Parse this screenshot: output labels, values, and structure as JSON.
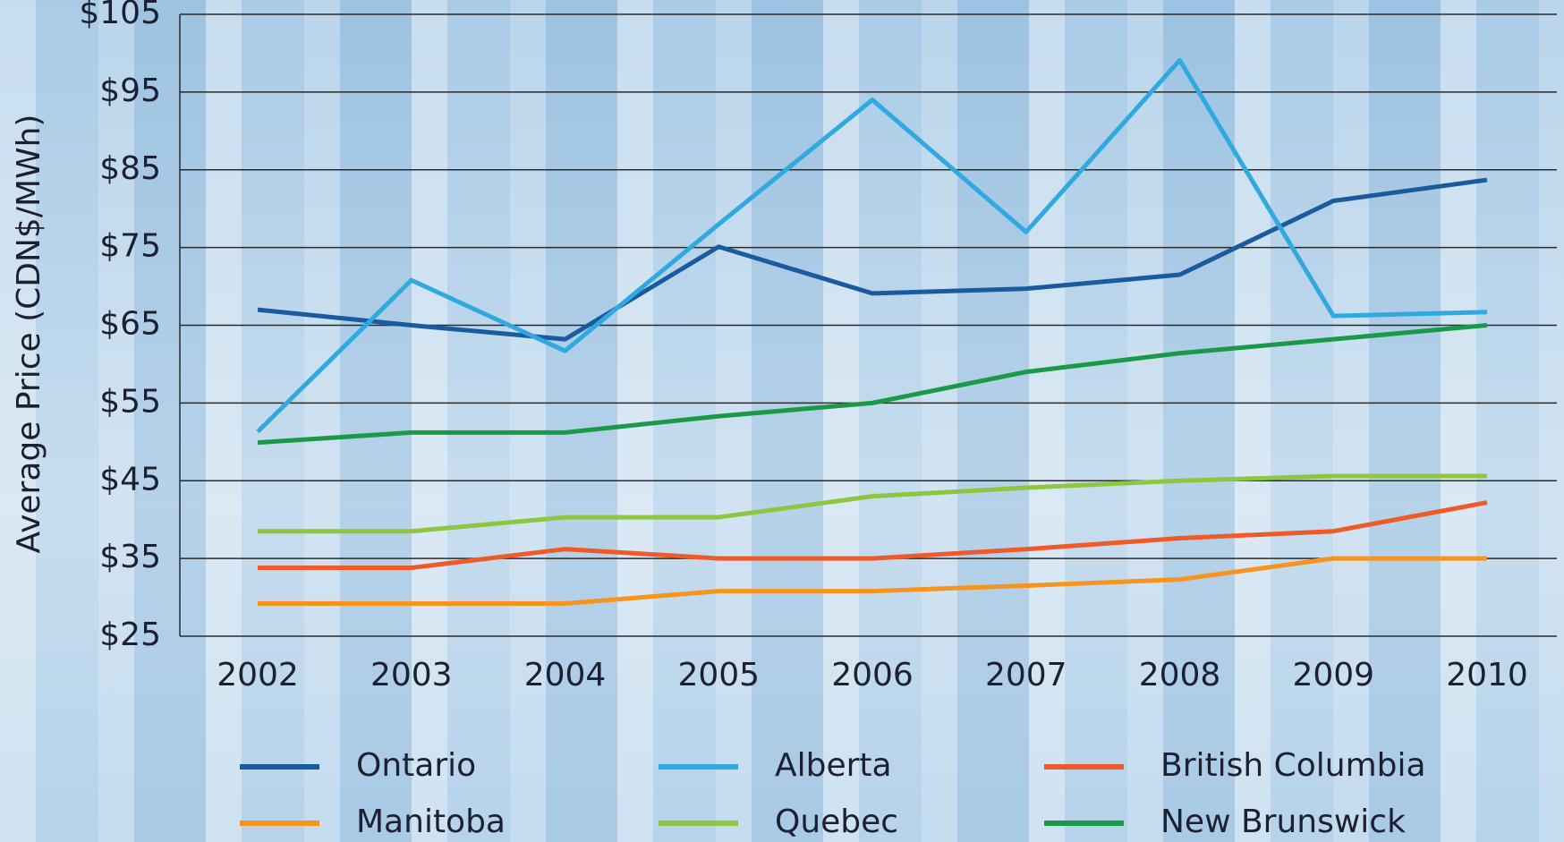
{
  "chart_data": {
    "type": "line",
    "y_label": "Average Price (CDN$/MWh)",
    "categories": [
      "2002",
      "2003",
      "2004",
      "2005",
      "2006",
      "2007",
      "2008",
      "2009",
      "2010"
    ],
    "series": [
      {
        "name": "Ontario",
        "color": "#1a5a9e",
        "values": [
          67,
          65,
          63.2,
          75.1,
          69.1,
          69.7,
          71.5,
          81,
          83.7
        ]
      },
      {
        "name": "Alberta",
        "color": "#2fa9e0",
        "values": [
          51.3,
          70.8,
          61.7,
          78,
          94,
          77,
          99.1,
          66.2,
          66.7
        ]
      },
      {
        "name": "British Columbia",
        "color": "#f05a28",
        "values": [
          33.8,
          33.8,
          36.2,
          35,
          35,
          36.2,
          37.6,
          38.5,
          42.2
        ]
      },
      {
        "name": "Manitoba",
        "color": "#f7941d",
        "values": [
          29.2,
          29.2,
          29.2,
          30.8,
          30.8,
          31.5,
          32.3,
          35,
          35
        ]
      },
      {
        "name": "Quebec",
        "color": "#8dc63f",
        "values": [
          38.5,
          38.5,
          40.3,
          40.3,
          43,
          44.1,
          45,
          45.6,
          45.6
        ]
      },
      {
        "name": "New Brunswick",
        "color": "#1a9a48",
        "values": [
          49.9,
          51.2,
          51.2,
          53.3,
          55,
          59,
          61.4,
          63.2,
          65
        ]
      }
    ],
    "ylim": [
      25,
      105
    ],
    "yticks": [
      {
        "value": 25,
        "label": "$25"
      },
      {
        "value": 35,
        "label": "$35"
      },
      {
        "value": 45,
        "label": "$45"
      },
      {
        "value": 55,
        "label": "$55"
      },
      {
        "value": 65,
        "label": "$65"
      },
      {
        "value": 75,
        "label": "$75"
      },
      {
        "value": 85,
        "label": "$85"
      },
      {
        "value": 95,
        "label": "$95"
      },
      {
        "value": 105,
        "label": "$105"
      }
    ],
    "grid": true
  }
}
